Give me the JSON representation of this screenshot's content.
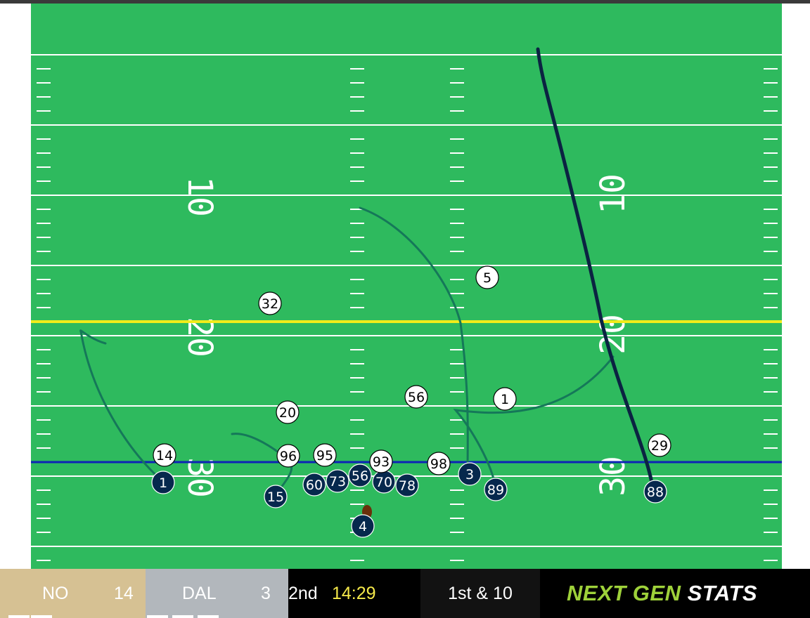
{
  "field": {
    "colors": {
      "grass": "#2eba5e",
      "lines": "#ffffff",
      "first_down_line": "#f1ec1a",
      "line_of_scrimmage": "#0d23b6",
      "offense_dot": "#06284d",
      "defense_dot": "#ffffff",
      "route_line": "#157859",
      "highlight_route": "#0b2342",
      "ball": "#6a2f0b"
    },
    "yard_numbers": [
      "10",
      "20",
      "30",
      "10",
      "20",
      "30"
    ]
  },
  "players": {
    "offense": [
      "1",
      "15",
      "60",
      "73",
      "56",
      "70",
      "78",
      "3",
      "89",
      "88",
      "4"
    ],
    "defense": [
      "32",
      "5",
      "56",
      "1",
      "20",
      "14",
      "96",
      "95",
      "93",
      "98",
      "29"
    ]
  },
  "ball_icon": "football-icon",
  "scoreboard": {
    "home": {
      "abbr": "NO",
      "score": "14",
      "color": "#d6c193"
    },
    "away": {
      "abbr": "DAL",
      "score": "3",
      "color": "#b2b7bc"
    },
    "quarter": "2nd",
    "clock": "14:29",
    "down_distance": "1st & 10",
    "brand": {
      "part1": "NEXT GEN",
      "part2": "STATS"
    }
  }
}
